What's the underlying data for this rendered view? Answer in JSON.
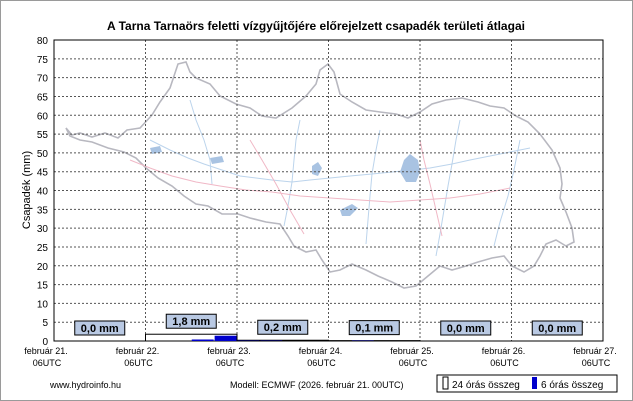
{
  "footer": {
    "source": "www.hydroinfo.hu",
    "model": "Modell: ECMWF (2026. február 21. 00UTC)"
  },
  "legend": {
    "items": [
      {
        "label": "24 órás összeg",
        "swatch": "hollow",
        "color": "#ffffff"
      },
      {
        "label": "6 órás összeg",
        "swatch": "filled",
        "color": "#0000cc"
      }
    ]
  },
  "colors": {
    "bar24": "#ffffff",
    "bar6": "#0000cc",
    "grid": "#555555",
    "map_outline": "#b8b8c0",
    "map_rivers": "#bcd4ec",
    "map_water": "#a9c3e2",
    "map_roads": "#f0b8c6",
    "label_box": "#b9c9e3"
  },
  "chart_data": {
    "type": "bar",
    "title": "A Tarna Tarnaörs feletti vízgyűjtőjére előrejelzett csapadék területi átlagai",
    "xlabel": "",
    "ylabel": "Csapadék (mm)",
    "ylim": [
      0,
      80
    ],
    "yticks": [
      0,
      5,
      10,
      15,
      20,
      25,
      30,
      35,
      40,
      45,
      50,
      55,
      60,
      65,
      70,
      75,
      80
    ],
    "xticks": [
      {
        "date": "február 21.",
        "time": "06UTC"
      },
      {
        "date": "február 22.",
        "time": "06UTC"
      },
      {
        "date": "február 23.",
        "time": "06UTC"
      },
      {
        "date": "február 24.",
        "time": "06UTC"
      },
      {
        "date": "február 25.",
        "time": "06UTC"
      },
      {
        "date": "február 26.",
        "time": "06UTC"
      },
      {
        "date": "február 27.",
        "time": "06UTC"
      }
    ],
    "grid": true,
    "legend_position": "bottom-right",
    "series": [
      {
        "name": "24 órás összeg",
        "values": [
          0.0,
          1.8,
          0.2,
          0.1,
          0.0,
          0.0
        ]
      },
      {
        "name": "6 órás összeg",
        "values": [
          0.0,
          0.0,
          0.0,
          0.0,
          0.0,
          0.0,
          0.4,
          1.4,
          0.1,
          0.1,
          0.0,
          0.0,
          0.0,
          0.1,
          0.0,
          0.0,
          0.0,
          0.0,
          0.0,
          0.0,
          0.0,
          0.0,
          0.0,
          0.0
        ]
      }
    ],
    "value_labels": [
      "0,0 mm",
      "1,8 mm",
      "0,2 mm",
      "0,1 mm",
      "0,0 mm",
      "0,0 mm"
    ]
  }
}
